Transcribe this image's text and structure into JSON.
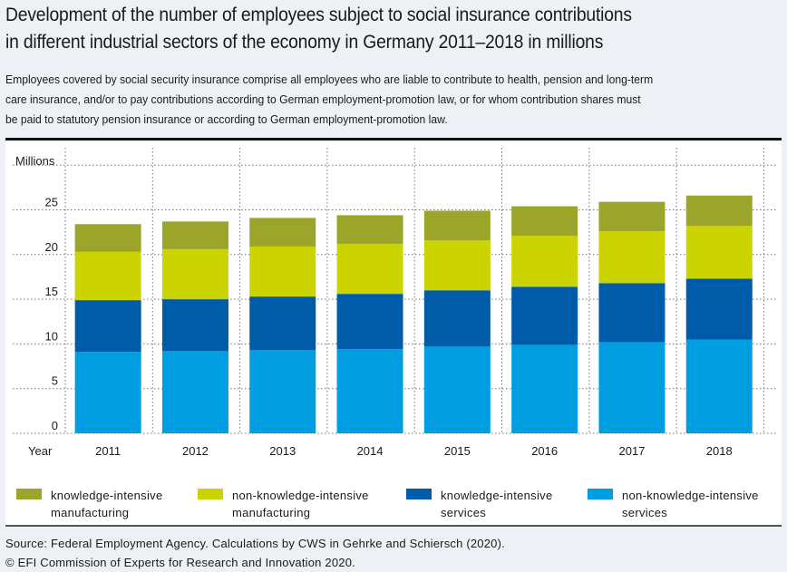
{
  "title_lines": [
    "Development of the number of employees subject to social insurance contributions",
    "in different industrial sectors of the economy in Germany 2011–2018 in millions"
  ],
  "subtitle_lines": [
    "Employees covered by social security insurance comprise all employees who are liable to contribute to health, pension and long-term",
    "care insurance, and/or to pay contributions according to German employment-promotion law, or for whom contribution shares must",
    "be paid to statutory pension insurance or according to German employment-promotion law."
  ],
  "source_lines": [
    "Source: Federal Employment Agency. Calculations by CWS in Gehrke and Schiersch (2020).",
    "© EFI Commission of Experts for Research and Innovation 2020."
  ],
  "chart_data": {
    "type": "bar",
    "stacked": true,
    "title": "Development of the number of employees subject to social insurance contributions in different industrial sectors of the economy in Germany 2011–2018 in millions",
    "xlabel": "Year",
    "ylabel": "Millions",
    "categories": [
      "2011",
      "2012",
      "2013",
      "2014",
      "2015",
      "2016",
      "2017",
      "2018"
    ],
    "ylim": [
      0,
      30
    ],
    "yticks": [
      0,
      5,
      10,
      15,
      20,
      25
    ],
    "grid": true,
    "legend_position": "bottom",
    "series": [
      {
        "name": "non-knowledge-intensive services",
        "label_lines": [
          "non-knowledge-intensive",
          "services"
        ],
        "color": "#009ee0",
        "values": [
          9.1,
          9.2,
          9.3,
          9.4,
          9.7,
          9.9,
          10.2,
          10.5
        ]
      },
      {
        "name": "knowledge-intensive services",
        "label_lines": [
          "knowledge-intensive",
          "services"
        ],
        "color": "#005ca8",
        "values": [
          5.8,
          5.8,
          6.0,
          6.2,
          6.3,
          6.5,
          6.6,
          6.8
        ]
      },
      {
        "name": "non-knowledge-intensive manufacturing",
        "label_lines": [
          "non-knowledge-intensive",
          "manufacturing"
        ],
        "color": "#ccd400",
        "values": [
          5.4,
          5.6,
          5.6,
          5.6,
          5.6,
          5.7,
          5.8,
          5.9
        ]
      },
      {
        "name": "knowledge-intensive manufacturing",
        "label_lines": [
          "knowledge-intensive",
          "manufacturing"
        ],
        "color": "#9aa52a",
        "values": [
          3.1,
          3.1,
          3.2,
          3.2,
          3.3,
          3.3,
          3.3,
          3.4
        ]
      }
    ],
    "legend_order": [
      3,
      2,
      1,
      0
    ]
  }
}
